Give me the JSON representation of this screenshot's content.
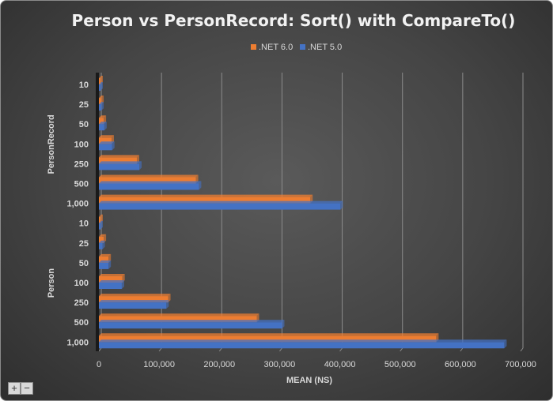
{
  "chart_data": {
    "type": "bar",
    "orientation": "horizontal",
    "title": "Person vs PersonRecord: Sort() with CompareTo()",
    "xlabel": "MEAN (NS)",
    "ylabel": "",
    "xlim": [
      0,
      700000
    ],
    "x_ticks": [
      "0",
      "100,000",
      "200,000",
      "300,000",
      "400,000",
      "500,000",
      "600,000",
      "700,000"
    ],
    "grid": true,
    "legend_position": "top",
    "groups": [
      {
        "name": "PersonRecord",
        "categories": [
          "10",
          "25",
          "50",
          "100",
          "250",
          "500",
          "1,000"
        ]
      },
      {
        "name": "Person",
        "categories": [
          "10",
          "25",
          "50",
          "100",
          "250",
          "500",
          "1,000"
        ]
      }
    ],
    "series": [
      {
        "name": ".NET 6.0",
        "color": "#ED7D31",
        "values": [
          [
            2000,
            4000,
            8000,
            21000,
            63000,
            161000,
            351000
          ],
          [
            2000,
            8000,
            16000,
            39000,
            115000,
            262000,
            560000
          ]
        ]
      },
      {
        "name": ".NET 5.0",
        "color": "#4472C4",
        "values": [
          [
            2000,
            4000,
            9000,
            22000,
            67000,
            166000,
            401000
          ],
          [
            2000,
            6000,
            16000,
            38000,
            112000,
            304000,
            673000
          ]
        ]
      }
    ]
  },
  "controls": {
    "zoom_in": "+",
    "zoom_out": "−"
  }
}
